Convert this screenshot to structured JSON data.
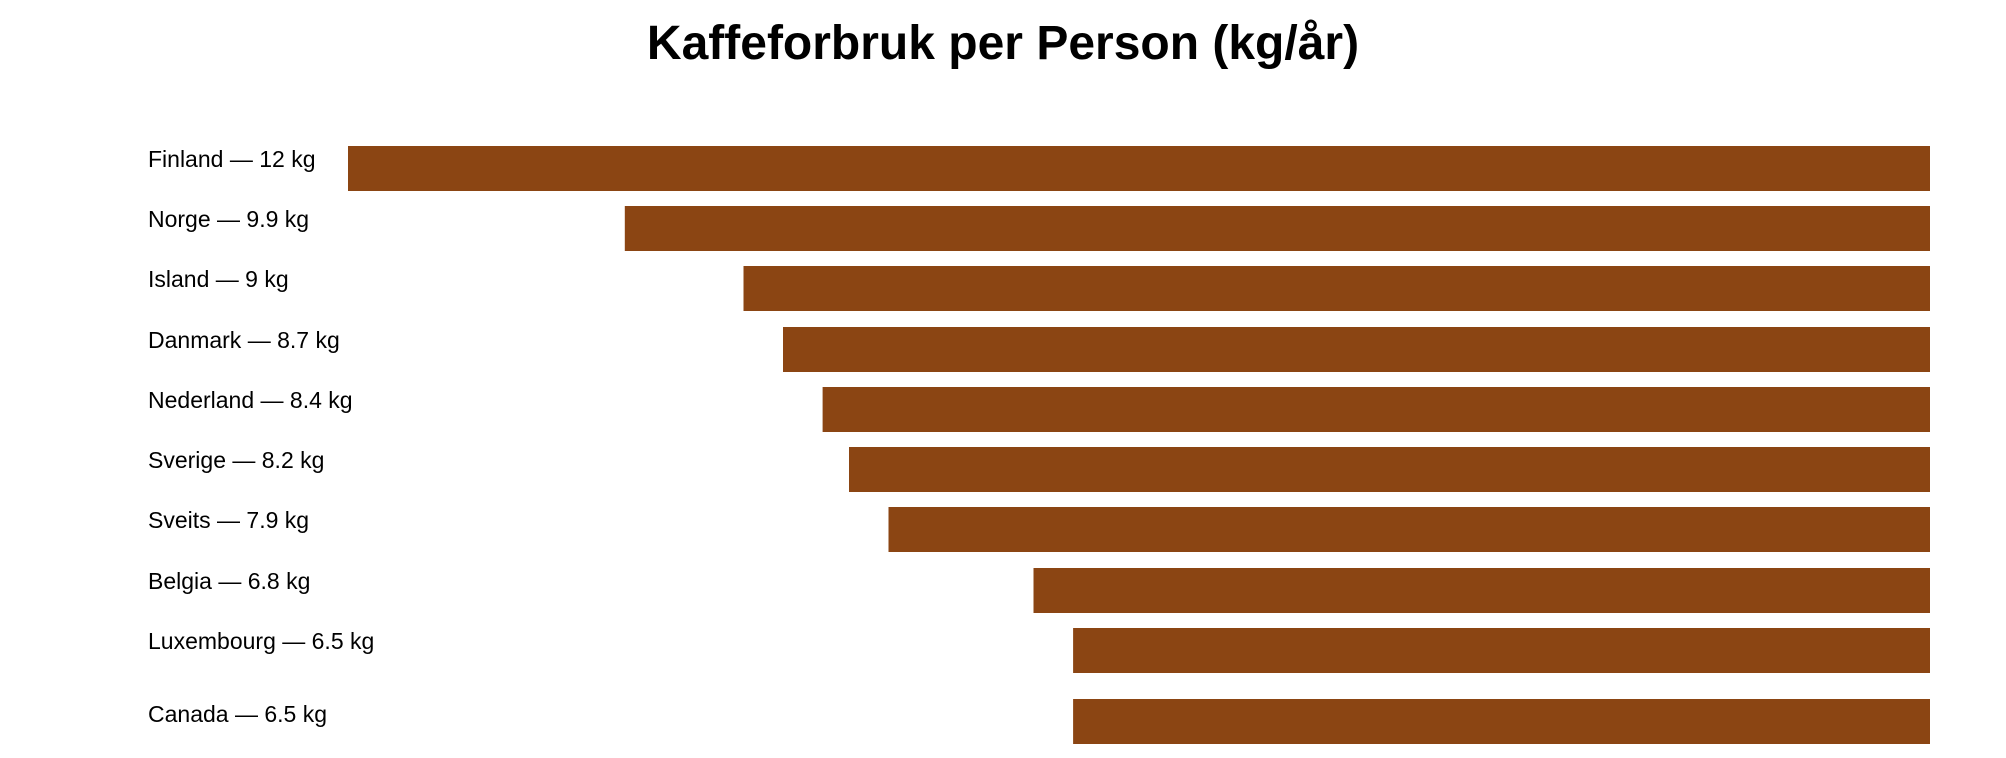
{
  "chart_data": {
    "type": "bar",
    "orientation": "horizontal",
    "title": "Kaffeforbruk per Person (kg/år)",
    "unit": "kg",
    "categories": [
      "Finland",
      "Norge",
      "Island",
      "Danmark",
      "Nederland",
      "Sverige",
      "Sveits",
      "Belgia",
      "Luxembourg",
      "Canada"
    ],
    "values": [
      12,
      9.9,
      9,
      8.7,
      8.4,
      8.2,
      7.9,
      6.8,
      6.5,
      6.5
    ],
    "labels": [
      "Finland — 12 kg",
      "Norge — 9.9 kg",
      "Island — 9 kg",
      "Danmark — 8.7 kg",
      "Nederland — 8.4 kg",
      "Sverige — 8.2 kg",
      "Sveits — 7.9 kg",
      "Belgia — 6.8 kg",
      "Luxembourg — 6.5 kg",
      "Canada — 6.5 kg"
    ],
    "bar_color": "#8B4513",
    "xlabel": "",
    "ylabel": "",
    "grid": false,
    "legend": "none"
  }
}
